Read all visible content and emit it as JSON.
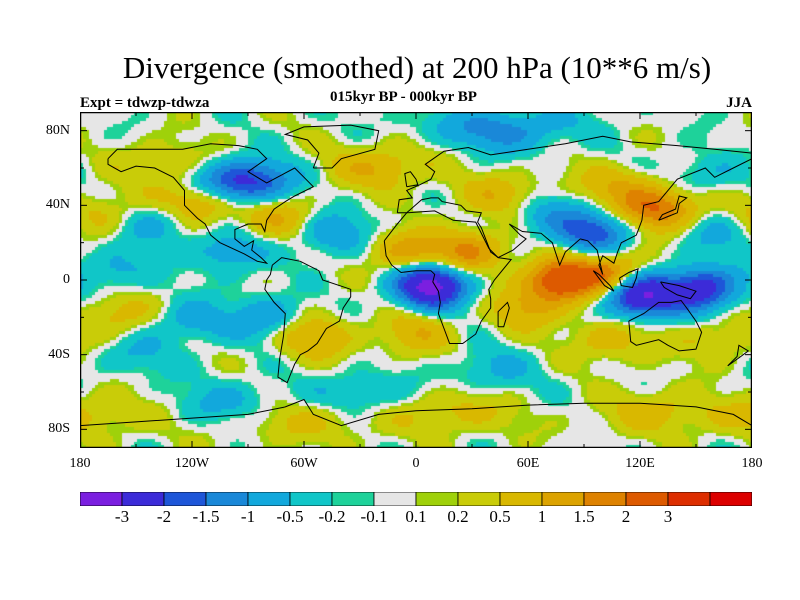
{
  "title": "Divergence (smoothed) at 200 hPa (10**6 m/s)",
  "subtitle": "015kyr BP - 000kyr BP",
  "experiment": "Expt = tdwzp-tdwza",
  "season": "JJA",
  "map": {
    "projection": "cylindrical-equidistant",
    "lon_range": [
      -180,
      180
    ],
    "lat_range": [
      -90,
      90
    ],
    "lat_ticks": [
      {
        "value": 80,
        "label": "80N"
      },
      {
        "value": 40,
        "label": "40N"
      },
      {
        "value": 0,
        "label": "0"
      },
      {
        "value": -40,
        "label": "40S"
      },
      {
        "value": -80,
        "label": "80S"
      }
    ],
    "lon_ticks": [
      {
        "value": -180,
        "label": "180"
      },
      {
        "value": -120,
        "label": "120W"
      },
      {
        "value": -60,
        "label": "60W"
      },
      {
        "value": 0,
        "label": "0"
      },
      {
        "value": 60,
        "label": "60E"
      },
      {
        "value": 120,
        "label": "120E"
      },
      {
        "value": 180,
        "label": "180"
      }
    ],
    "fields": [
      {
        "lon": 8,
        "lat": -3,
        "value": -3.5
      },
      {
        "lon": 120,
        "lat": -8,
        "value": -3.2
      },
      {
        "lon": 153,
        "lat": -5,
        "value": -2.5
      },
      {
        "lon": -93,
        "lat": 52,
        "value": -2.5
      },
      {
        "lon": 95,
        "lat": 25,
        "value": -1.8
      },
      {
        "lon": 45,
        "lat": 80,
        "value": -1.2
      },
      {
        "lon": -160,
        "lat": 5,
        "value": -0.7
      },
      {
        "lon": -140,
        "lat": 30,
        "value": -0.7
      },
      {
        "lon": -100,
        "lat": 15,
        "value": -0.9
      },
      {
        "lon": -80,
        "lat": -20,
        "value": -1.0
      },
      {
        "lon": -120,
        "lat": -22,
        "value": -0.8
      },
      {
        "lon": -45,
        "lat": 25,
        "value": -1.0
      },
      {
        "lon": 70,
        "lat": 35,
        "value": -0.8
      },
      {
        "lon": -100,
        "lat": -65,
        "value": -0.6
      },
      {
        "lon": -30,
        "lat": -60,
        "value": -0.6
      },
      {
        "lon": 40,
        "lat": -48,
        "value": -0.6
      },
      {
        "lon": 150,
        "lat": 55,
        "value": -0.6
      },
      {
        "lon": -150,
        "lat": -40,
        "value": -0.5
      },
      {
        "lon": 160,
        "lat": 25,
        "value": -0.6
      },
      {
        "lon": 78,
        "lat": 0,
        "value": 2.7
      },
      {
        "lon": 105,
        "lat": 3,
        "value": 1.8
      },
      {
        "lon": 130,
        "lat": 38,
        "value": 2.0
      },
      {
        "lon": 28,
        "lat": 15,
        "value": 1.6
      },
      {
        "lon": -5,
        "lat": 15,
        "value": 1.3
      },
      {
        "lon": -115,
        "lat": 42,
        "value": 1.2
      },
      {
        "lon": -75,
        "lat": 33,
        "value": 1.0
      },
      {
        "lon": -20,
        "lat": 60,
        "value": 1.0
      },
      {
        "lon": 45,
        "lat": 45,
        "value": 0.9
      },
      {
        "lon": 110,
        "lat": 50,
        "value": 0.9
      },
      {
        "lon": -55,
        "lat": -30,
        "value": 1.1
      },
      {
        "lon": 0,
        "lat": -28,
        "value": 0.9
      },
      {
        "lon": 105,
        "lat": -32,
        "value": 0.8
      },
      {
        "lon": -160,
        "lat": -18,
        "value": 0.8
      },
      {
        "lon": -170,
        "lat": 35,
        "value": 0.7
      },
      {
        "lon": -135,
        "lat": 62,
        "value": 0.6
      },
      {
        "lon": 60,
        "lat": -15,
        "value": 1.0
      },
      {
        "lon": 20,
        "lat": -70,
        "value": 0.7
      },
      {
        "lon": 130,
        "lat": -70,
        "value": 0.7
      },
      {
        "lon": -60,
        "lat": -75,
        "value": 0.6
      },
      {
        "lon": -170,
        "lat": -72,
        "value": 0.6
      },
      {
        "lon": 160,
        "lat": -32,
        "value": 0.6
      }
    ]
  },
  "colorbar": {
    "colors": [
      "#7b1fe0",
      "#3c2bd8",
      "#1e56d8",
      "#1a88d8",
      "#12a8dc",
      "#10c6c8",
      "#1ed29a",
      "#e6e6e6",
      "#9fd10a",
      "#c9cc08",
      "#d9b800",
      "#dca300",
      "#de8200",
      "#dd5a00",
      "#dd2e00",
      "#dc0000"
    ],
    "levels": [
      -3,
      -2,
      -1.5,
      -1,
      -0.5,
      -0.2,
      -0.1,
      0.1,
      0.2,
      0.5,
      1,
      1.5,
      2,
      3
    ],
    "labels": [
      "-3",
      "-2",
      "-1.5",
      "-1",
      "-0.5",
      "-0.2",
      "-0.1",
      "0.1",
      "0.2",
      "0.5",
      "1",
      "1.5",
      "2",
      "3"
    ]
  }
}
